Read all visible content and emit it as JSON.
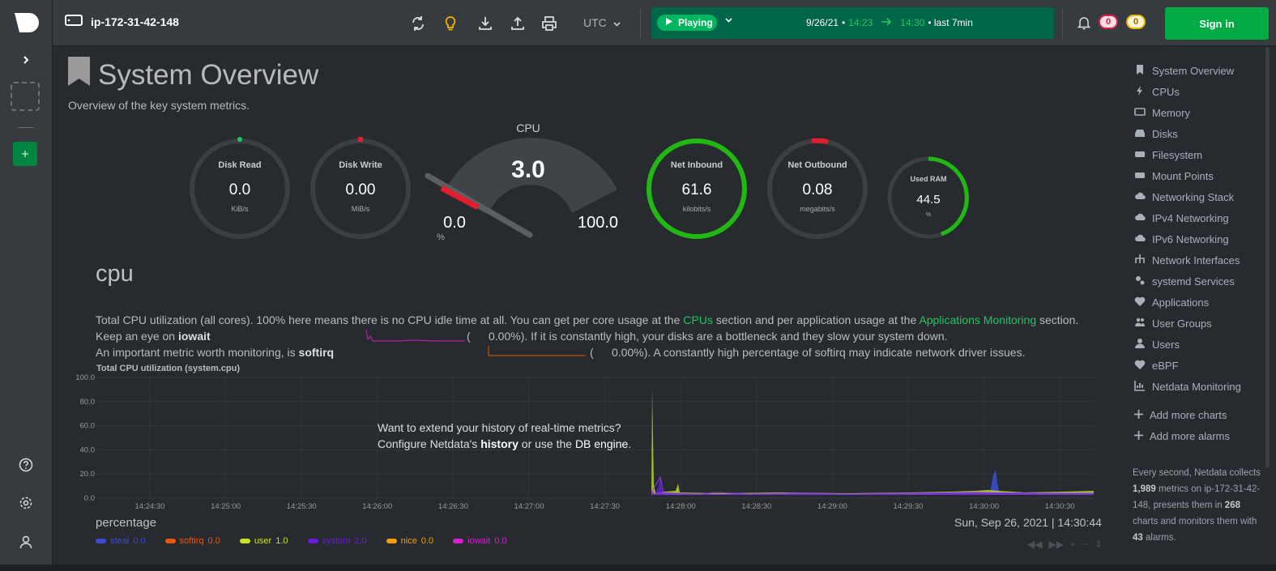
{
  "header": {
    "hostname": "ip-172-31-42-148",
    "timezone": "UTC",
    "play_label": "Playing",
    "date": "9/26/21",
    "time_from": "14:23",
    "time_to": "14:30",
    "range_label": "• last 7min",
    "alarms_critical": "0",
    "alarms_warning": "0",
    "signin_label": "Sign in"
  },
  "page": {
    "title": "System Overview",
    "subtitle": "Overview of the key system metrics."
  },
  "gauges": {
    "disk_read": {
      "label": "Disk Read",
      "value": "0.0",
      "unit": "KiB/s",
      "fraction": 0.0
    },
    "disk_write": {
      "label": "Disk Write",
      "value": "0.00",
      "unit": "MiB/s",
      "fraction": 0.0
    },
    "cpu": {
      "label": "CPU",
      "value": "3.0",
      "min": "0.0",
      "max": "100.0",
      "unit": "%",
      "fraction": 0.03
    },
    "net_inbound": {
      "label": "Net Inbound",
      "value": "61.6",
      "unit": "kilobits/s",
      "fraction": 1.0
    },
    "net_outbound": {
      "label": "Net Outbound",
      "value": "0.08",
      "unit": "megabits/s",
      "fraction": 0.0
    },
    "used_ram": {
      "label": "Used RAM",
      "value": "44.5",
      "unit": "%",
      "fraction": 0.445
    }
  },
  "section": {
    "heading": "cpu",
    "desc_line1_a": "Total CPU utilization (all cores). 100% here means there is no CPU idle time at all. You can get per core usage at the ",
    "desc_link1": "CPUs",
    "desc_line1_b": " section and per application usage at the ",
    "desc_link2": "Applications Monitoring",
    "desc_line1_c": " section.",
    "desc_line2_a": "Keep an eye on ",
    "desc_line2_b": "iowait",
    "desc_line2_c": "(",
    "desc_line2_d": "0.00%). If it is constantly high, your disks are a bottleneck and they slow your system down.",
    "desc_line3_a": "An important metric worth monitoring, is ",
    "desc_line3_b": "softirq",
    "desc_line3_c": "(",
    "desc_line3_d": "0.00%). A constantly high percentage of softirq may indicate network driver issues."
  },
  "chart_data": {
    "type": "area",
    "title": "Total CPU utilization (system.cpu)",
    "ylabel": "percentage",
    "ylim": [
      0,
      100
    ],
    "yticks": [
      "100.0",
      "80.0",
      "60.0",
      "40.0",
      "20.0",
      "0.0"
    ],
    "xticks": [
      "14:24:30",
      "14:25:00",
      "14:25:30",
      "14:26:00",
      "14:26:30",
      "14:27:00",
      "14:27:30",
      "14:28:00",
      "14:28:30",
      "14:29:00",
      "14:29:30",
      "14:30:00",
      "14:30:30"
    ],
    "series": [
      {
        "name": "steal",
        "value": "0.0",
        "color": "#3b4cd6"
      },
      {
        "name": "softirq",
        "value": "0.0",
        "color": "#e8590c"
      },
      {
        "name": "user",
        "value": "1.0",
        "color": "#c6e21f"
      },
      {
        "name": "system",
        "value": "2.0",
        "color": "#6a1be0"
      },
      {
        "name": "nice",
        "value": "0.0",
        "color": "#f59f00"
      },
      {
        "name": "iowait",
        "value": "0.0",
        "color": "#d61fcd"
      }
    ],
    "notable_points": [
      {
        "series": "user",
        "time": "14:27:47",
        "value": 90
      },
      {
        "series": "system",
        "time": "14:27:50",
        "value": 15
      },
      {
        "series": "steal",
        "time": "14:30:04",
        "value": 22
      }
    ],
    "footer_time": "Sun, Sep 26, 2021 | 14:30:44"
  },
  "overlay": {
    "line1": "Want to extend your history of real-time metrics?",
    "line2_a": "Configure Netdata's ",
    "line2_b": "history",
    "line2_c": " or use the ",
    "line2_d": "DB engine",
    "line2_e": "."
  },
  "nav": {
    "items": [
      {
        "label": "System Overview",
        "icon": "bookmark-icon"
      },
      {
        "label": "CPUs",
        "icon": "bolt-icon"
      },
      {
        "label": "Memory",
        "icon": "memory-icon"
      },
      {
        "label": "Disks",
        "icon": "disk-icon"
      },
      {
        "label": "Filesystem",
        "icon": "drive-icon"
      },
      {
        "label": "Mount Points",
        "icon": "drive-icon"
      },
      {
        "label": "Networking Stack",
        "icon": "cloud-icon"
      },
      {
        "label": "IPv4 Networking",
        "icon": "cloud-icon"
      },
      {
        "label": "IPv6 Networking",
        "icon": "cloud-icon"
      },
      {
        "label": "Network Interfaces",
        "icon": "network-icon"
      },
      {
        "label": "systemd Services",
        "icon": "gears-icon"
      },
      {
        "label": "Applications",
        "icon": "heartbeat-icon"
      },
      {
        "label": "User Groups",
        "icon": "users-icon"
      },
      {
        "label": "Users",
        "icon": "user-icon"
      },
      {
        "label": "eBPF",
        "icon": "heartbeat-icon"
      },
      {
        "label": "Netdata Monitoring",
        "icon": "bar-chart-icon"
      }
    ],
    "add_charts": "Add more charts",
    "add_alarms": "Add more alarms",
    "note_a": "Every second, Netdata collects ",
    "note_metrics": "1,989",
    "note_b": " metrics on ip-172-31-42-148, presents them in ",
    "note_charts": "268",
    "note_c": " charts and monitors them with ",
    "note_alarms": "43",
    "note_d": " alarms."
  }
}
